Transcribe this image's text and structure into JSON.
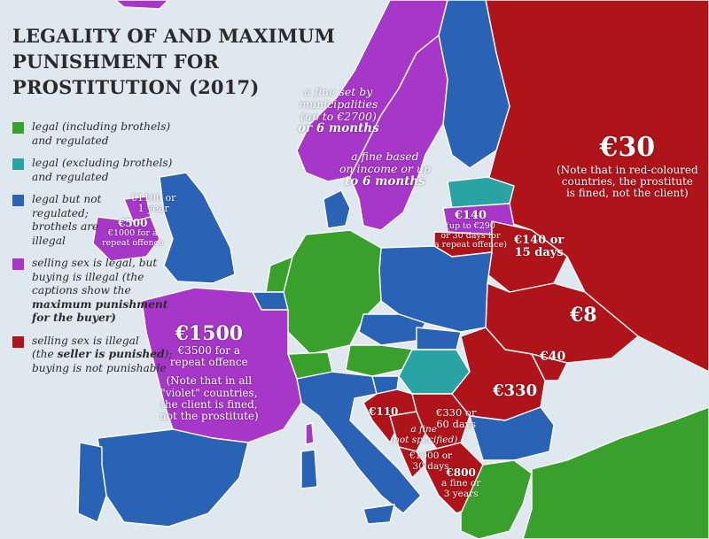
{
  "title": {
    "lines": [
      "LEGALITY OF AND MAXIMUM",
      "PUNISHMENT FOR",
      "PROSTITUTION (2017)"
    ]
  },
  "colors": {
    "green": "#3aa02c",
    "teal": "#2aa3a5",
    "blue": "#2a62b6",
    "purple": "#a737c8",
    "red": "#b0141b",
    "sea": "#dfe7ef"
  },
  "legend": [
    {
      "color": "green",
      "lines": [
        "legal (including brothels)",
        "and regulated"
      ]
    },
    {
      "color": "teal",
      "lines": [
        "legal (excluding brothels)",
        "and regulated"
      ]
    },
    {
      "color": "blue",
      "lines": [
        "legal but not",
        "regulated;",
        "brothels are",
        "illegal"
      ]
    },
    {
      "color": "purple",
      "lines": [
        "selling sex is legal, but",
        "buying is illegal (the",
        "captions show the"
      ],
      "bold_line": "maximum punishment",
      "after_bold": "for the buyer)"
    },
    {
      "color": "red",
      "pre_bold": "selling sex is illegal",
      "bold_prefix": "(the ",
      "bold_line": "seller is punished",
      "bold_suffix": ");",
      "lines_after": [
        "buying is not punishable"
      ]
    }
  ],
  "labels": {
    "norway": [
      "a fine set by",
      "municipalities",
      "(up to €2700)",
      "or 6 months"
    ],
    "sweden": [
      "a fine based",
      "on income or up",
      "to 6 months"
    ],
    "uk": [
      "€1100 or",
      "1 year"
    ],
    "ireland": [
      "€500",
      "€1000 for a",
      "repeat offence"
    ],
    "latvia": [
      "€140",
      "(up to €290",
      "or 30 days for",
      "a repeat offence)"
    ],
    "belarus": [
      "€140 or",
      "15 days"
    ],
    "russia": [
      "€30",
      "(Note that in red-coloured",
      "countries, the prostitute",
      "is fined, not the client)"
    ],
    "ukraine": "€8",
    "moldova": "€40",
    "romania": "€330",
    "croatia": "€110",
    "serbia": [
      "€330 or",
      "60 days"
    ],
    "bosnia": [
      "a fine",
      "(not specified)"
    ],
    "montenegro": [
      "€1000 or",
      "30 days"
    ],
    "albania": [
      "€800",
      "a fine or",
      "3 years"
    ],
    "france": [
      "€1500",
      "€3500 for a",
      "repeat offence",
      "(Note that in all",
      "\"violet\" countries,",
      "the client is fined,",
      "not the prostitute)"
    ]
  }
}
